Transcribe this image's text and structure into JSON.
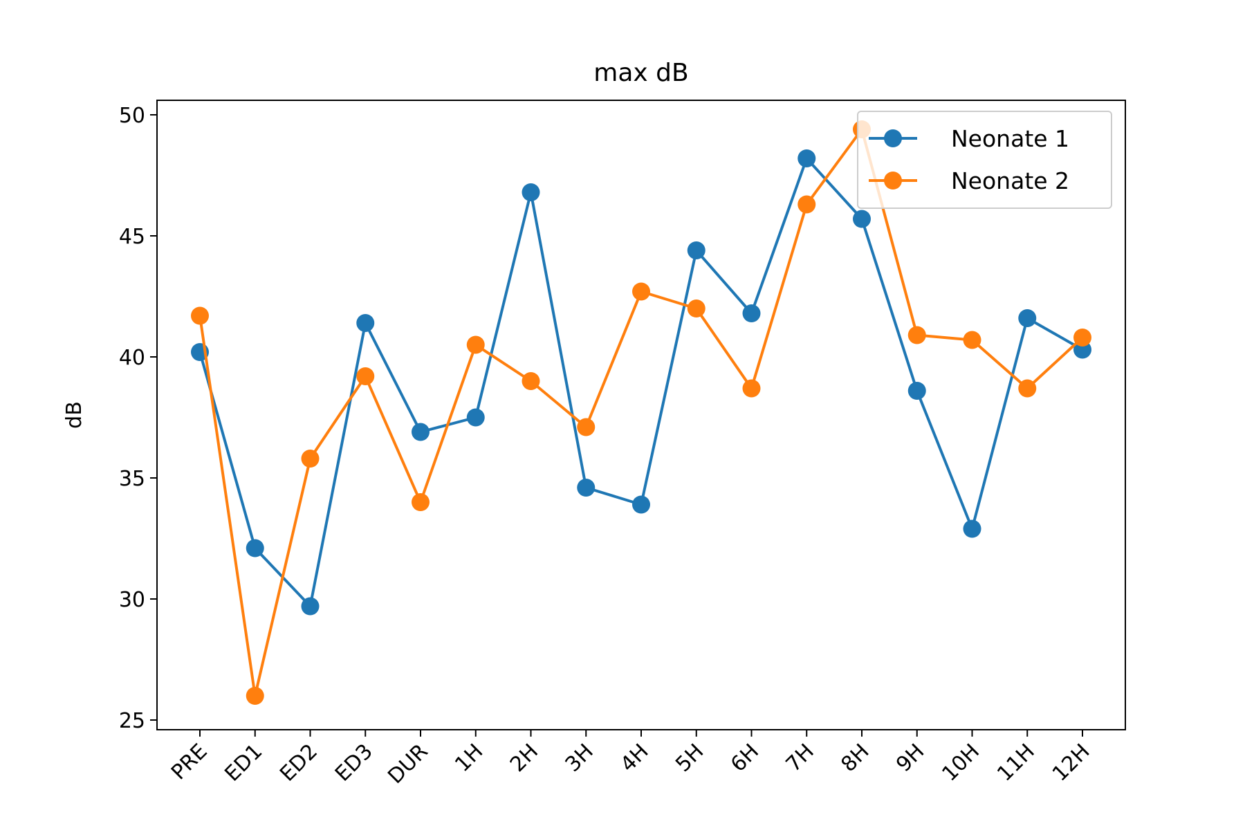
{
  "chart_data": {
    "type": "line",
    "title": "max dB",
    "xlabel": "",
    "ylabel": "dB",
    "categories": [
      "PRE",
      "ED1",
      "ED2",
      "ED3",
      "DUR",
      "1H",
      "2H",
      "3H",
      "4H",
      "5H",
      "6H",
      "7H",
      "8H",
      "9H",
      "10H",
      "11H",
      "12H"
    ],
    "yticks": [
      25,
      30,
      35,
      40,
      45,
      50
    ],
    "ylim": [
      24.6,
      50.6
    ],
    "grid": false,
    "legend_position": "upper-right",
    "series": [
      {
        "name": "Neonate 1",
        "color": "#1f77b4",
        "marker": "circle",
        "values": [
          40.2,
          32.1,
          29.7,
          41.4,
          36.9,
          37.5,
          46.8,
          34.6,
          33.9,
          44.4,
          41.8,
          48.2,
          45.7,
          38.6,
          32.9,
          41.6,
          40.3
        ]
      },
      {
        "name": "Neonate 2",
        "color": "#ff7f0e",
        "marker": "circle",
        "values": [
          41.7,
          26.0,
          35.8,
          39.2,
          34.0,
          40.5,
          39.0,
          37.1,
          42.7,
          42.0,
          38.7,
          46.3,
          49.4,
          40.9,
          40.7,
          38.7,
          40.8
        ]
      }
    ]
  }
}
